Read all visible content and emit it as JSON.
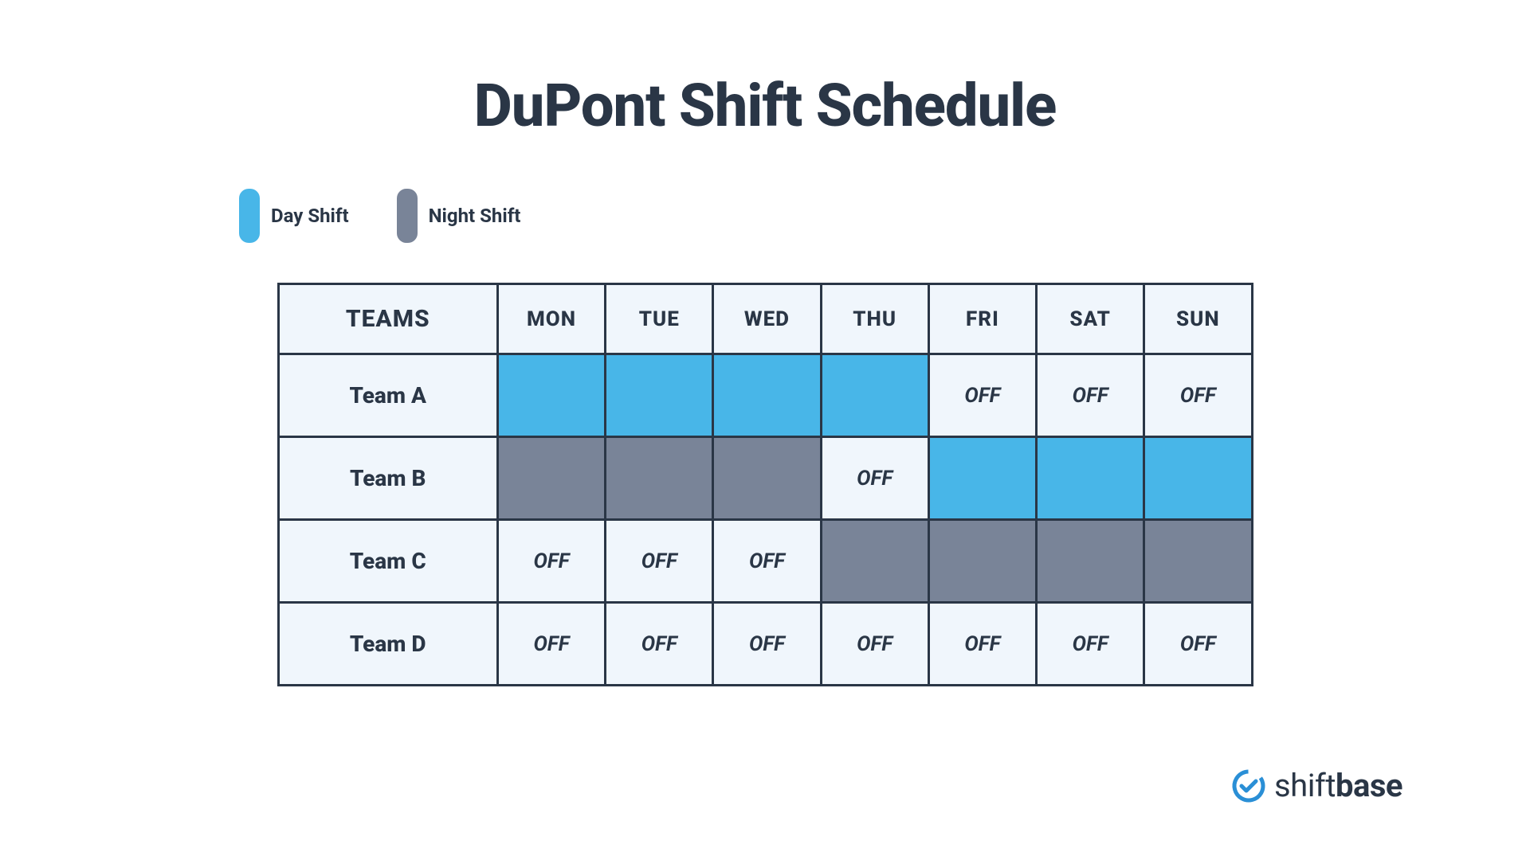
{
  "title": "DuPont Shift Schedule",
  "colors": {
    "day_shift": "#48b6e8",
    "night_shift": "#798498",
    "text": "#2a3646",
    "cell_bg": "#f0f6fc",
    "border": "#2a3646",
    "logo_accent": "#2a8fd6"
  },
  "legend": {
    "items": [
      {
        "label": "Day Shift",
        "color_key": "day_shift"
      },
      {
        "label": "Night Shift",
        "color_key": "night_shift"
      }
    ]
  },
  "table": {
    "teams_header": "TEAMS",
    "days": [
      "MON",
      "TUE",
      "WED",
      "THU",
      "FRI",
      "SAT",
      "SUN"
    ],
    "off_label": "OFF",
    "rows": [
      {
        "team": "Team A",
        "cells": [
          "day",
          "day",
          "day",
          "day",
          "off",
          "off",
          "off"
        ]
      },
      {
        "team": "Team B",
        "cells": [
          "night",
          "night",
          "night",
          "off",
          "day",
          "day",
          "day"
        ]
      },
      {
        "team": "Team C",
        "cells": [
          "off",
          "off",
          "off",
          "night",
          "night",
          "night",
          "night"
        ]
      },
      {
        "team": "Team D",
        "cells": [
          "off",
          "off",
          "off",
          "off",
          "off",
          "off",
          "off"
        ]
      }
    ]
  },
  "branding": {
    "name_light": "shift",
    "name_bold": "base"
  }
}
